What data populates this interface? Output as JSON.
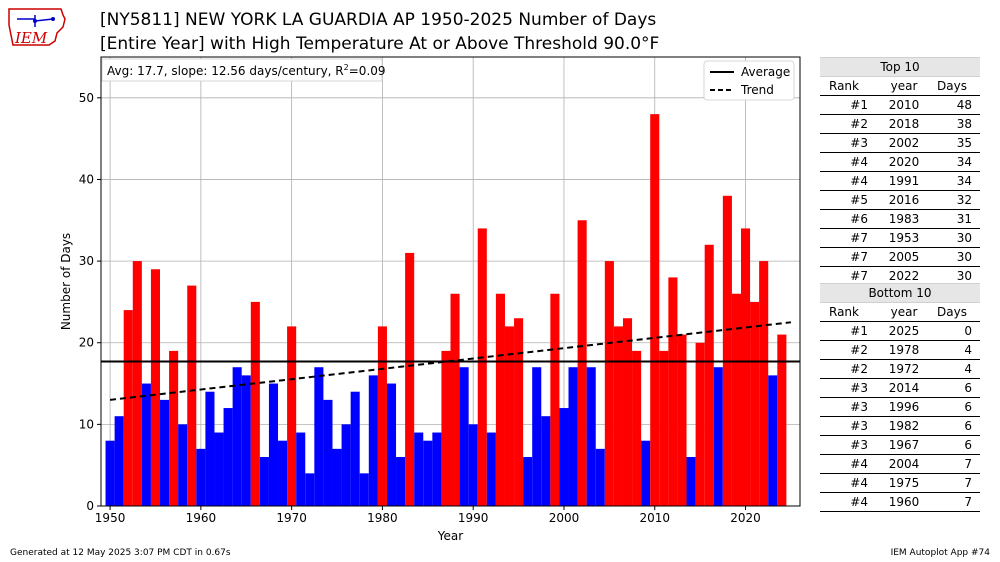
{
  "logo": {
    "text": "IEM"
  },
  "title": {
    "line1": "[NY5811] NEW YORK LA GUARDIA AP 1950-2025 Number of Days",
    "line2": "[Entire Year] with High Temperature At or Above Threshold 90.0°F"
  },
  "stats_box": {
    "prefix": "Avg: 17.7, slope: 12.56 days/century, R",
    "sup": "2",
    "suffix": "=0.09"
  },
  "legend": {
    "average_label": "Average",
    "trend_label": "Trend"
  },
  "colors": {
    "above": "#ff0000",
    "below": "#0000ff",
    "line": "#000000"
  },
  "chart_data": {
    "type": "bar",
    "xlabel": "Year",
    "ylabel": "Number of Days",
    "xlim": [
      1949,
      2026
    ],
    "ylim": [
      0,
      55
    ],
    "xticks": [
      1950,
      1960,
      1970,
      1980,
      1990,
      2000,
      2010,
      2020
    ],
    "yticks": [
      0,
      10,
      20,
      30,
      40,
      50
    ],
    "grid": true,
    "legend_placement": "top-right",
    "average": 17.7,
    "trend": {
      "start": [
        1950,
        13.0
      ],
      "end": [
        2025,
        22.5
      ]
    },
    "x": [
      1950,
      1951,
      1952,
      1953,
      1954,
      1955,
      1956,
      1957,
      1958,
      1959,
      1960,
      1961,
      1962,
      1963,
      1964,
      1965,
      1966,
      1967,
      1968,
      1969,
      1970,
      1971,
      1972,
      1973,
      1974,
      1975,
      1976,
      1977,
      1978,
      1979,
      1980,
      1981,
      1982,
      1983,
      1984,
      1985,
      1986,
      1987,
      1988,
      1989,
      1990,
      1991,
      1992,
      1993,
      1994,
      1995,
      1996,
      1997,
      1998,
      1999,
      2000,
      2001,
      2002,
      2003,
      2004,
      2005,
      2006,
      2007,
      2008,
      2009,
      2010,
      2011,
      2012,
      2013,
      2014,
      2015,
      2016,
      2017,
      2018,
      2019,
      2020,
      2021,
      2022,
      2023,
      2024,
      2025
    ],
    "values": [
      8,
      11,
      24,
      30,
      15,
      29,
      13,
      19,
      10,
      27,
      7,
      14,
      9,
      12,
      17,
      16,
      25,
      6,
      15,
      8,
      22,
      9,
      4,
      17,
      13,
      7,
      10,
      14,
      4,
      16,
      22,
      15,
      6,
      31,
      9,
      8,
      9,
      19,
      26,
      17,
      10,
      34,
      9,
      26,
      22,
      23,
      6,
      17,
      11,
      26,
      12,
      17,
      35,
      17,
      7,
      30,
      22,
      23,
      19,
      8,
      48,
      19,
      28,
      21,
      6,
      20,
      32,
      17,
      38,
      26,
      34,
      25,
      30,
      16,
      21,
      0
    ]
  },
  "top10": {
    "title": "Top 10",
    "columns": [
      "Rank",
      "year",
      "Days"
    ],
    "rows": [
      [
        "#1",
        "2010",
        "48"
      ],
      [
        "#2",
        "2018",
        "38"
      ],
      [
        "#3",
        "2002",
        "35"
      ],
      [
        "#4",
        "2020",
        "34"
      ],
      [
        "#4",
        "1991",
        "34"
      ],
      [
        "#5",
        "2016",
        "32"
      ],
      [
        "#6",
        "1983",
        "31"
      ],
      [
        "#7",
        "1953",
        "30"
      ],
      [
        "#7",
        "2005",
        "30"
      ],
      [
        "#7",
        "2022",
        "30"
      ]
    ]
  },
  "bottom10": {
    "title": "Bottom 10",
    "columns": [
      "Rank",
      "year",
      "Days"
    ],
    "rows": [
      [
        "#1",
        "2025",
        "0"
      ],
      [
        "#2",
        "1978",
        "4"
      ],
      [
        "#2",
        "1972",
        "4"
      ],
      [
        "#3",
        "2014",
        "6"
      ],
      [
        "#3",
        "1996",
        "6"
      ],
      [
        "#3",
        "1982",
        "6"
      ],
      [
        "#3",
        "1967",
        "6"
      ],
      [
        "#4",
        "2004",
        "7"
      ],
      [
        "#4",
        "1975",
        "7"
      ],
      [
        "#4",
        "1960",
        "7"
      ]
    ]
  },
  "footer": {
    "generated": "Generated at 12 May 2025 3:07 PM CDT in 0.67s",
    "app": "IEM Autoplot App #74"
  }
}
